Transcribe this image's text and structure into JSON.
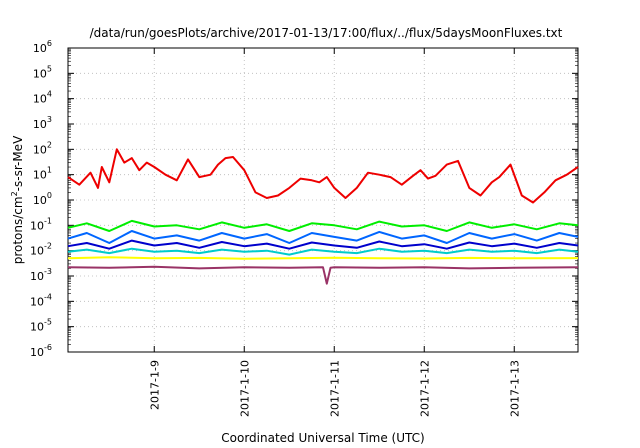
{
  "chart_data": {
    "type": "line",
    "title": "/data/run/goesPlots/archive/2017-01-13/17:00/flux/../flux/5daysMoonFluxes.txt",
    "xlabel": "Coordinated Universal Time (UTC)",
    "ylabel": {
      "base": "protons/cm",
      "exp": "2",
      "rest": "-s-sr-MeV"
    },
    "x_range": [
      "2017-01-08T01:00",
      "2017-01-13T17:00"
    ],
    "x_ticks": [
      "2017-1-9",
      "2017-1-10",
      "2017-1-11",
      "2017-1-12",
      "2017-1-13"
    ],
    "y_scale": "log",
    "ylim": [
      1e-06,
      1000000.0
    ],
    "y_ticks": [
      {
        "base": "10",
        "exp": "-6"
      },
      {
        "base": "10",
        "exp": "-5"
      },
      {
        "base": "10",
        "exp": "-4"
      },
      {
        "base": "10",
        "exp": "-3"
      },
      {
        "base": "10",
        "exp": "-2"
      },
      {
        "base": "10",
        "exp": "-1"
      },
      {
        "base": "10",
        "exp": "0"
      },
      {
        "base": "10",
        "exp": "1"
      },
      {
        "base": "10",
        "exp": "2"
      },
      {
        "base": "10",
        "exp": "3"
      },
      {
        "base": "10",
        "exp": "4"
      },
      {
        "base": "10",
        "exp": "5"
      },
      {
        "base": "10",
        "exp": "6"
      }
    ],
    "grid": true,
    "series": [
      {
        "color": "#ee0000",
        "x": [
          "2017-01-08T01:00",
          "2017-01-08T04:00",
          "2017-01-08T07:00",
          "2017-01-08T09:00",
          "2017-01-08T10:00",
          "2017-01-08T12:00",
          "2017-01-08T14:00",
          "2017-01-08T16:00",
          "2017-01-08T18:00",
          "2017-01-08T20:00",
          "2017-01-08T22:00",
          "2017-01-09T00:00",
          "2017-01-09T03:00",
          "2017-01-09T06:00",
          "2017-01-09T09:00",
          "2017-01-09T12:00",
          "2017-01-09T15:00",
          "2017-01-09T17:00",
          "2017-01-09T19:00",
          "2017-01-09T21:00",
          "2017-01-10T00:00",
          "2017-01-10T03:00",
          "2017-01-10T06:00",
          "2017-01-10T09:00",
          "2017-01-10T12:00",
          "2017-01-10T15:00",
          "2017-01-10T18:00",
          "2017-01-10T20:00",
          "2017-01-10T22:00",
          "2017-01-11T00:00",
          "2017-01-11T03:00",
          "2017-01-11T06:00",
          "2017-01-11T09:00",
          "2017-01-11T12:00",
          "2017-01-11T15:00",
          "2017-01-11T18:00",
          "2017-01-11T21:00",
          "2017-01-11T23:00",
          "2017-01-12T01:00",
          "2017-01-12T03:00",
          "2017-01-12T06:00",
          "2017-01-12T09:00",
          "2017-01-12T12:00",
          "2017-01-12T15:00",
          "2017-01-12T18:00",
          "2017-01-12T20:00",
          "2017-01-12T23:00",
          "2017-01-13T02:00",
          "2017-01-13T05:00",
          "2017-01-13T08:00",
          "2017-01-13T11:00",
          "2017-01-13T14:00",
          "2017-01-13T17:00"
        ],
        "y": [
          8,
          4,
          12,
          3,
          20,
          5,
          100,
          30,
          45,
          15,
          30,
          20,
          10,
          6,
          40,
          8,
          10,
          25,
          45,
          50,
          15,
          2,
          1.2,
          1.5,
          3,
          7,
          6,
          5,
          8,
          3,
          1.2,
          3,
          12,
          10,
          8,
          4,
          9,
          15,
          7,
          9,
          25,
          35,
          3,
          1.5,
          5,
          8,
          25,
          1.5,
          0.8,
          2,
          6,
          10,
          20
        ]
      },
      {
        "color": "#00ee00",
        "x": [
          "2017-01-08T01:00",
          "2017-01-08T06:00",
          "2017-01-08T12:00",
          "2017-01-08T18:00",
          "2017-01-09T00:00",
          "2017-01-09T06:00",
          "2017-01-09T12:00",
          "2017-01-09T18:00",
          "2017-01-10T00:00",
          "2017-01-10T06:00",
          "2017-01-10T12:00",
          "2017-01-10T18:00",
          "2017-01-11T00:00",
          "2017-01-11T06:00",
          "2017-01-11T12:00",
          "2017-01-11T18:00",
          "2017-01-12T00:00",
          "2017-01-12T06:00",
          "2017-01-12T12:00",
          "2017-01-12T18:00",
          "2017-01-13T00:00",
          "2017-01-13T06:00",
          "2017-01-13T12:00",
          "2017-01-13T17:00"
        ],
        "y": [
          0.08,
          0.12,
          0.06,
          0.15,
          0.09,
          0.1,
          0.07,
          0.13,
          0.08,
          0.11,
          0.06,
          0.12,
          0.1,
          0.07,
          0.14,
          0.09,
          0.1,
          0.06,
          0.13,
          0.08,
          0.11,
          0.07,
          0.12,
          0.1
        ]
      },
      {
        "color": "#0066ff",
        "x": [
          "2017-01-08T01:00",
          "2017-01-08T06:00",
          "2017-01-08T12:00",
          "2017-01-08T18:00",
          "2017-01-09T00:00",
          "2017-01-09T06:00",
          "2017-01-09T12:00",
          "2017-01-09T18:00",
          "2017-01-10T00:00",
          "2017-01-10T06:00",
          "2017-01-10T12:00",
          "2017-01-10T18:00",
          "2017-01-11T00:00",
          "2017-01-11T06:00",
          "2017-01-11T12:00",
          "2017-01-11T18:00",
          "2017-01-12T00:00",
          "2017-01-12T06:00",
          "2017-01-12T12:00",
          "2017-01-12T18:00",
          "2017-01-13T00:00",
          "2017-01-13T06:00",
          "2017-01-13T12:00",
          "2017-01-13T17:00"
        ],
        "y": [
          0.03,
          0.05,
          0.02,
          0.06,
          0.03,
          0.04,
          0.025,
          0.05,
          0.03,
          0.045,
          0.02,
          0.05,
          0.035,
          0.025,
          0.055,
          0.03,
          0.04,
          0.02,
          0.05,
          0.03,
          0.045,
          0.025,
          0.05,
          0.035
        ]
      },
      {
        "color": "#0000cc",
        "x": [
          "2017-01-08T01:00",
          "2017-01-08T06:00",
          "2017-01-08T12:00",
          "2017-01-08T18:00",
          "2017-01-09T00:00",
          "2017-01-09T06:00",
          "2017-01-09T12:00",
          "2017-01-09T18:00",
          "2017-01-10T00:00",
          "2017-01-10T06:00",
          "2017-01-10T12:00",
          "2017-01-10T18:00",
          "2017-01-11T00:00",
          "2017-01-11T06:00",
          "2017-01-11T12:00",
          "2017-01-11T18:00",
          "2017-01-12T00:00",
          "2017-01-12T06:00",
          "2017-01-12T12:00",
          "2017-01-12T18:00",
          "2017-01-13T00:00",
          "2017-01-13T06:00",
          "2017-01-13T12:00",
          "2017-01-13T17:00"
        ],
        "y": [
          0.015,
          0.02,
          0.012,
          0.025,
          0.016,
          0.02,
          0.013,
          0.022,
          0.015,
          0.019,
          0.012,
          0.021,
          0.016,
          0.013,
          0.023,
          0.015,
          0.018,
          0.012,
          0.021,
          0.015,
          0.019,
          0.013,
          0.02,
          0.016
        ]
      },
      {
        "color": "#00cccc",
        "x": [
          "2017-01-08T01:00",
          "2017-01-08T06:00",
          "2017-01-08T12:00",
          "2017-01-08T18:00",
          "2017-01-09T00:00",
          "2017-01-09T06:00",
          "2017-01-09T12:00",
          "2017-01-09T18:00",
          "2017-01-10T00:00",
          "2017-01-10T06:00",
          "2017-01-10T12:00",
          "2017-01-10T18:00",
          "2017-01-11T00:00",
          "2017-01-11T06:00",
          "2017-01-11T12:00",
          "2017-01-11T18:00",
          "2017-01-12T00:00",
          "2017-01-12T06:00",
          "2017-01-12T12:00",
          "2017-01-12T18:00",
          "2017-01-13T00:00",
          "2017-01-13T06:00",
          "2017-01-13T12:00",
          "2017-01-13T17:00"
        ],
        "y": [
          0.009,
          0.011,
          0.008,
          0.012,
          0.009,
          0.01,
          0.008,
          0.011,
          0.009,
          0.01,
          0.007,
          0.011,
          0.009,
          0.008,
          0.012,
          0.009,
          0.01,
          0.008,
          0.011,
          0.009,
          0.01,
          0.008,
          0.011,
          0.009
        ]
      },
      {
        "color": "#ffff00",
        "x": [
          "2017-01-08T01:00",
          "2017-01-08T12:00",
          "2017-01-09T00:00",
          "2017-01-09T12:00",
          "2017-01-10T00:00",
          "2017-01-10T12:00",
          "2017-01-11T00:00",
          "2017-01-11T12:00",
          "2017-01-12T00:00",
          "2017-01-12T12:00",
          "2017-01-13T00:00",
          "2017-01-13T17:00"
        ],
        "y": [
          0.005,
          0.0055,
          0.005,
          0.0052,
          0.0048,
          0.005,
          0.0053,
          0.005,
          0.0049,
          0.0052,
          0.005,
          0.0051
        ]
      },
      {
        "color": "#993366",
        "x": [
          "2017-01-08T01:00",
          "2017-01-08T12:00",
          "2017-01-09T00:00",
          "2017-01-09T12:00",
          "2017-01-10T00:00",
          "2017-01-10T12:00",
          "2017-01-10T21:00",
          "2017-01-10T22:00",
          "2017-01-10T23:00",
          "2017-01-11T00:00",
          "2017-01-11T12:00",
          "2017-01-12T00:00",
          "2017-01-12T12:00",
          "2017-01-13T00:00",
          "2017-01-13T17:00"
        ],
        "y": [
          0.0022,
          0.0021,
          0.0023,
          0.002,
          0.0022,
          0.0021,
          0.0022,
          0.0005,
          0.0021,
          0.0022,
          0.0021,
          0.0022,
          0.002,
          0.0021,
          0.0022
        ]
      }
    ]
  }
}
